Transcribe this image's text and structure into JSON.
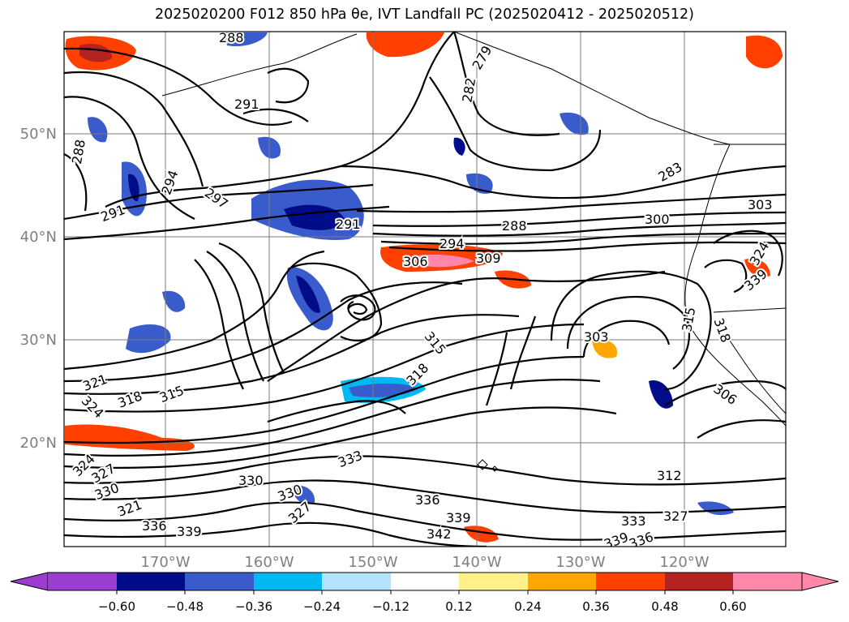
{
  "title": "2025020200 F012 850 hPa θe, IVT Landfall PC (2025020412 - 2025020512)",
  "map": {
    "lon_labels": [
      "170°W",
      "160°W",
      "150°W",
      "140°W",
      "130°W",
      "120°W"
    ],
    "lat_labels": [
      "50°N",
      "40°N",
      "30°N",
      "20°N"
    ],
    "contour_labels": [
      "288",
      "279",
      "282",
      "291",
      "288",
      "297",
      "291",
      "294",
      "291",
      "288",
      "294",
      "306",
      "309",
      "300",
      "303",
      "283",
      "315",
      "318",
      "315",
      "318",
      "321",
      "324",
      "324",
      "327",
      "330",
      "330",
      "321",
      "336",
      "339",
      "333",
      "330",
      "336",
      "327",
      "342",
      "339",
      "336",
      "339",
      "333",
      "312",
      "327",
      "303",
      "306",
      "318",
      "315",
      "324",
      "339"
    ]
  },
  "colorbar": {
    "ticks": [
      "−0.60",
      "−0.48",
      "−0.36",
      "−0.24",
      "−0.12",
      "0.12",
      "0.24",
      "0.36",
      "0.48",
      "0.60"
    ],
    "colors": [
      "#9b3dd1",
      "#000c8a",
      "#3a5bcc",
      "#00b8f2",
      "#b3e2ff",
      "#ffffff",
      "#fff08a",
      "#ffa600",
      "#ff4000",
      "#b52222",
      "#ff88aa"
    ]
  }
}
